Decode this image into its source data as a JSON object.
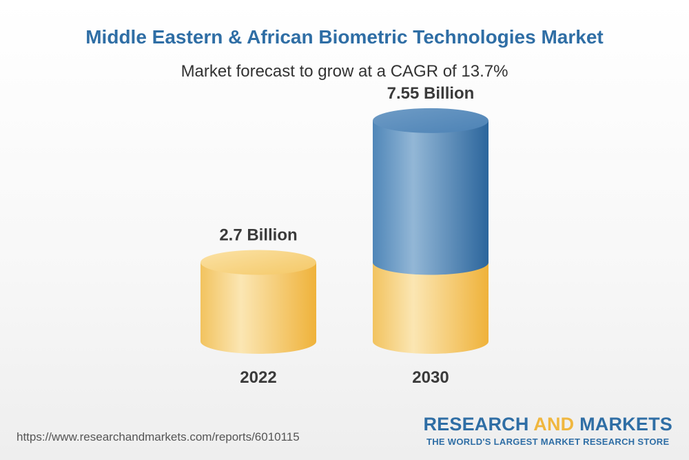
{
  "chart_data": {
    "type": "bar",
    "title": "Middle Eastern & African Biometric Technologies Market",
    "subtitle": "Market forecast to grow at a CAGR of 13.7%",
    "categories": [
      "2022",
      "2030"
    ],
    "values": [
      2.7,
      7.55
    ],
    "value_labels": [
      "2.7 Billion",
      "7.55 Billion"
    ],
    "unit": "Billion",
    "colors": {
      "base": "#f0b73f",
      "growth": "#2f6ea5"
    }
  },
  "footer": {
    "url": "https://www.researchandmarkets.com/reports/6010115",
    "brand_part1": "RESEARCH ",
    "brand_part2": "AND",
    "brand_part3": " MARKETS",
    "tagline": "THE WORLD'S LARGEST MARKET RESEARCH STORE"
  }
}
